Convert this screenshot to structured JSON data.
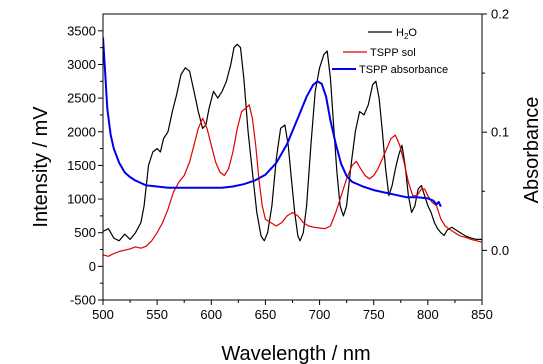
{
  "chart_data": {
    "type": "line",
    "title": "",
    "xlabel": "Wavelength / nm",
    "ylabel": "Intensity / mV",
    "y2label": "Absorbance",
    "xlim": [
      500,
      850
    ],
    "ylim": [
      -500,
      3750
    ],
    "y2lim": [
      -0.042,
      0.2
    ],
    "x_ticks": [
      500,
      550,
      600,
      650,
      700,
      750,
      800,
      850
    ],
    "y_ticks": [
      -500,
      0,
      500,
      1000,
      1500,
      2000,
      2500,
      3000,
      3500
    ],
    "y2_ticks": [
      0.0,
      0.1,
      0.2
    ],
    "x_tick_labels": [
      "500",
      "550",
      "600",
      "650",
      "700",
      "750",
      "800",
      "850"
    ],
    "y_tick_labels": [
      "-500",
      "0",
      "500",
      "1000",
      "1500",
      "2000",
      "2500",
      "3000",
      "3500"
    ],
    "y2_tick_labels": [
      "0.0",
      "0.1",
      "0.2"
    ],
    "grid": false,
    "legend_position": "top-right",
    "series": [
      {
        "name": "H2O",
        "legend_main": "H",
        "legend_sub": "2",
        "legend_rest": "O",
        "color": "#000000",
        "axis": "left",
        "points": [
          [
            500,
            520
          ],
          [
            505,
            560
          ],
          [
            510,
            420
          ],
          [
            515,
            380
          ],
          [
            520,
            480
          ],
          [
            525,
            400
          ],
          [
            530,
            500
          ],
          [
            535,
            650
          ],
          [
            538,
            900
          ],
          [
            542,
            1500
          ],
          [
            546,
            1700
          ],
          [
            550,
            1750
          ],
          [
            553,
            1700
          ],
          [
            556,
            1900
          ],
          [
            560,
            2000
          ],
          [
            564,
            2300
          ],
          [
            568,
            2550
          ],
          [
            572,
            2850
          ],
          [
            576,
            2950
          ],
          [
            580,
            2900
          ],
          [
            584,
            2600
          ],
          [
            588,
            2300
          ],
          [
            592,
            2050
          ],
          [
            595,
            2100
          ],
          [
            598,
            2350
          ],
          [
            602,
            2600
          ],
          [
            606,
            2500
          ],
          [
            610,
            2600
          ],
          [
            614,
            2750
          ],
          [
            618,
            3000
          ],
          [
            621,
            3250
          ],
          [
            624,
            3300
          ],
          [
            627,
            3250
          ],
          [
            630,
            2800
          ],
          [
            634,
            2000
          ],
          [
            638,
            1400
          ],
          [
            642,
            800
          ],
          [
            646,
            450
          ],
          [
            649,
            380
          ],
          [
            652,
            500
          ],
          [
            656,
            900
          ],
          [
            660,
            1600
          ],
          [
            664,
            2050
          ],
          [
            668,
            2100
          ],
          [
            671,
            1800
          ],
          [
            674,
            1300
          ],
          [
            677,
            800
          ],
          [
            680,
            450
          ],
          [
            682,
            380
          ],
          [
            685,
            500
          ],
          [
            688,
            900
          ],
          [
            692,
            1800
          ],
          [
            696,
            2600
          ],
          [
            700,
            2950
          ],
          [
            704,
            3150
          ],
          [
            707,
            3200
          ],
          [
            710,
            2800
          ],
          [
            713,
            2100
          ],
          [
            716,
            1400
          ],
          [
            719,
            900
          ],
          [
            722,
            750
          ],
          [
            725,
            900
          ],
          [
            729,
            1500
          ],
          [
            733,
            2000
          ],
          [
            737,
            2300
          ],
          [
            741,
            2250
          ],
          [
            745,
            2400
          ],
          [
            749,
            2700
          ],
          [
            752,
            2750
          ],
          [
            755,
            2500
          ],
          [
            758,
            2000
          ],
          [
            761,
            1450
          ],
          [
            764,
            1050
          ],
          [
            767,
            1200
          ],
          [
            770,
            1450
          ],
          [
            773,
            1650
          ],
          [
            776,
            1800
          ],
          [
            779,
            1500
          ],
          [
            782,
            1050
          ],
          [
            785,
            800
          ],
          [
            788,
            900
          ],
          [
            791,
            1150
          ],
          [
            794,
            1200
          ],
          [
            797,
            1050
          ],
          [
            800,
            900
          ],
          [
            803,
            800
          ],
          [
            806,
            650
          ],
          [
            809,
            560
          ],
          [
            812,
            500
          ],
          [
            815,
            460
          ],
          [
            818,
            540
          ],
          [
            822,
            580
          ],
          [
            826,
            540
          ],
          [
            830,
            500
          ],
          [
            835,
            450
          ],
          [
            840,
            420
          ],
          [
            845,
            400
          ],
          [
            850,
            400
          ]
        ]
      },
      {
        "name": "TSPP sol",
        "color": "#e00000",
        "axis": "left",
        "points": [
          [
            500,
            170
          ],
          [
            505,
            150
          ],
          [
            510,
            190
          ],
          [
            515,
            220
          ],
          [
            520,
            240
          ],
          [
            525,
            260
          ],
          [
            530,
            290
          ],
          [
            535,
            270
          ],
          [
            540,
            300
          ],
          [
            545,
            380
          ],
          [
            550,
            500
          ],
          [
            555,
            650
          ],
          [
            560,
            850
          ],
          [
            565,
            1100
          ],
          [
            570,
            1250
          ],
          [
            575,
            1350
          ],
          [
            580,
            1550
          ],
          [
            584,
            1800
          ],
          [
            588,
            2050
          ],
          [
            592,
            2200
          ],
          [
            596,
            2050
          ],
          [
            600,
            1800
          ],
          [
            604,
            1550
          ],
          [
            608,
            1400
          ],
          [
            612,
            1350
          ],
          [
            616,
            1450
          ],
          [
            620,
            1700
          ],
          [
            624,
            2050
          ],
          [
            628,
            2300
          ],
          [
            632,
            2350
          ],
          [
            635,
            2400
          ],
          [
            638,
            2200
          ],
          [
            641,
            1800
          ],
          [
            644,
            1300
          ],
          [
            647,
            900
          ],
          [
            650,
            700
          ],
          [
            655,
            650
          ],
          [
            660,
            600
          ],
          [
            665,
            650
          ],
          [
            670,
            750
          ],
          [
            675,
            800
          ],
          [
            680,
            750
          ],
          [
            685,
            650
          ],
          [
            690,
            600
          ],
          [
            695,
            580
          ],
          [
            700,
            570
          ],
          [
            705,
            560
          ],
          [
            710,
            600
          ],
          [
            715,
            800
          ],
          [
            720,
            1050
          ],
          [
            725,
            1300
          ],
          [
            730,
            1500
          ],
          [
            734,
            1560
          ],
          [
            738,
            1450
          ],
          [
            742,
            1350
          ],
          [
            746,
            1300
          ],
          [
            750,
            1350
          ],
          [
            754,
            1450
          ],
          [
            758,
            1600
          ],
          [
            762,
            1750
          ],
          [
            766,
            1900
          ],
          [
            770,
            1950
          ],
          [
            774,
            1800
          ],
          [
            778,
            1550
          ],
          [
            782,
            1250
          ],
          [
            786,
            1050
          ],
          [
            790,
            1050
          ],
          [
            794,
            1150
          ],
          [
            797,
            1150
          ],
          [
            800,
            1050
          ],
          [
            804,
            950
          ],
          [
            808,
            900
          ],
          [
            812,
            700
          ],
          [
            816,
            600
          ],
          [
            820,
            550
          ],
          [
            825,
            500
          ],
          [
            830,
            450
          ],
          [
            835,
            430
          ],
          [
            840,
            400
          ],
          [
            845,
            380
          ],
          [
            850,
            360
          ]
        ]
      },
      {
        "name": "TSPP absorbance",
        "color": "#0000ee",
        "axis": "right",
        "points": [
          [
            500,
            0.18
          ],
          [
            502,
            0.15
          ],
          [
            504,
            0.12
          ],
          [
            507,
            0.098
          ],
          [
            510,
            0.086
          ],
          [
            515,
            0.074
          ],
          [
            520,
            0.066
          ],
          [
            525,
            0.062
          ],
          [
            530,
            0.059
          ],
          [
            535,
            0.057
          ],
          [
            540,
            0.055
          ],
          [
            550,
            0.054
          ],
          [
            560,
            0.053
          ],
          [
            570,
            0.053
          ],
          [
            580,
            0.053
          ],
          [
            590,
            0.053
          ],
          [
            600,
            0.053
          ],
          [
            610,
            0.053
          ],
          [
            620,
            0.054
          ],
          [
            630,
            0.056
          ],
          [
            640,
            0.059
          ],
          [
            650,
            0.064
          ],
          [
            660,
            0.074
          ],
          [
            670,
            0.09
          ],
          [
            680,
            0.112
          ],
          [
            688,
            0.13
          ],
          [
            694,
            0.14
          ],
          [
            698,
            0.143
          ],
          [
            702,
            0.141
          ],
          [
            706,
            0.13
          ],
          [
            710,
            0.11
          ],
          [
            715,
            0.09
          ],
          [
            720,
            0.073
          ],
          [
            725,
            0.063
          ],
          [
            730,
            0.058
          ],
          [
            740,
            0.054
          ],
          [
            750,
            0.051
          ],
          [
            760,
            0.049
          ],
          [
            770,
            0.047
          ],
          [
            780,
            0.045
          ],
          [
            790,
            0.045
          ],
          [
            800,
            0.044
          ],
          [
            805,
            0.042
          ],
          [
            808,
            0.039
          ],
          [
            810,
            0.041
          ],
          [
            812,
            0.037
          ]
        ]
      }
    ]
  }
}
